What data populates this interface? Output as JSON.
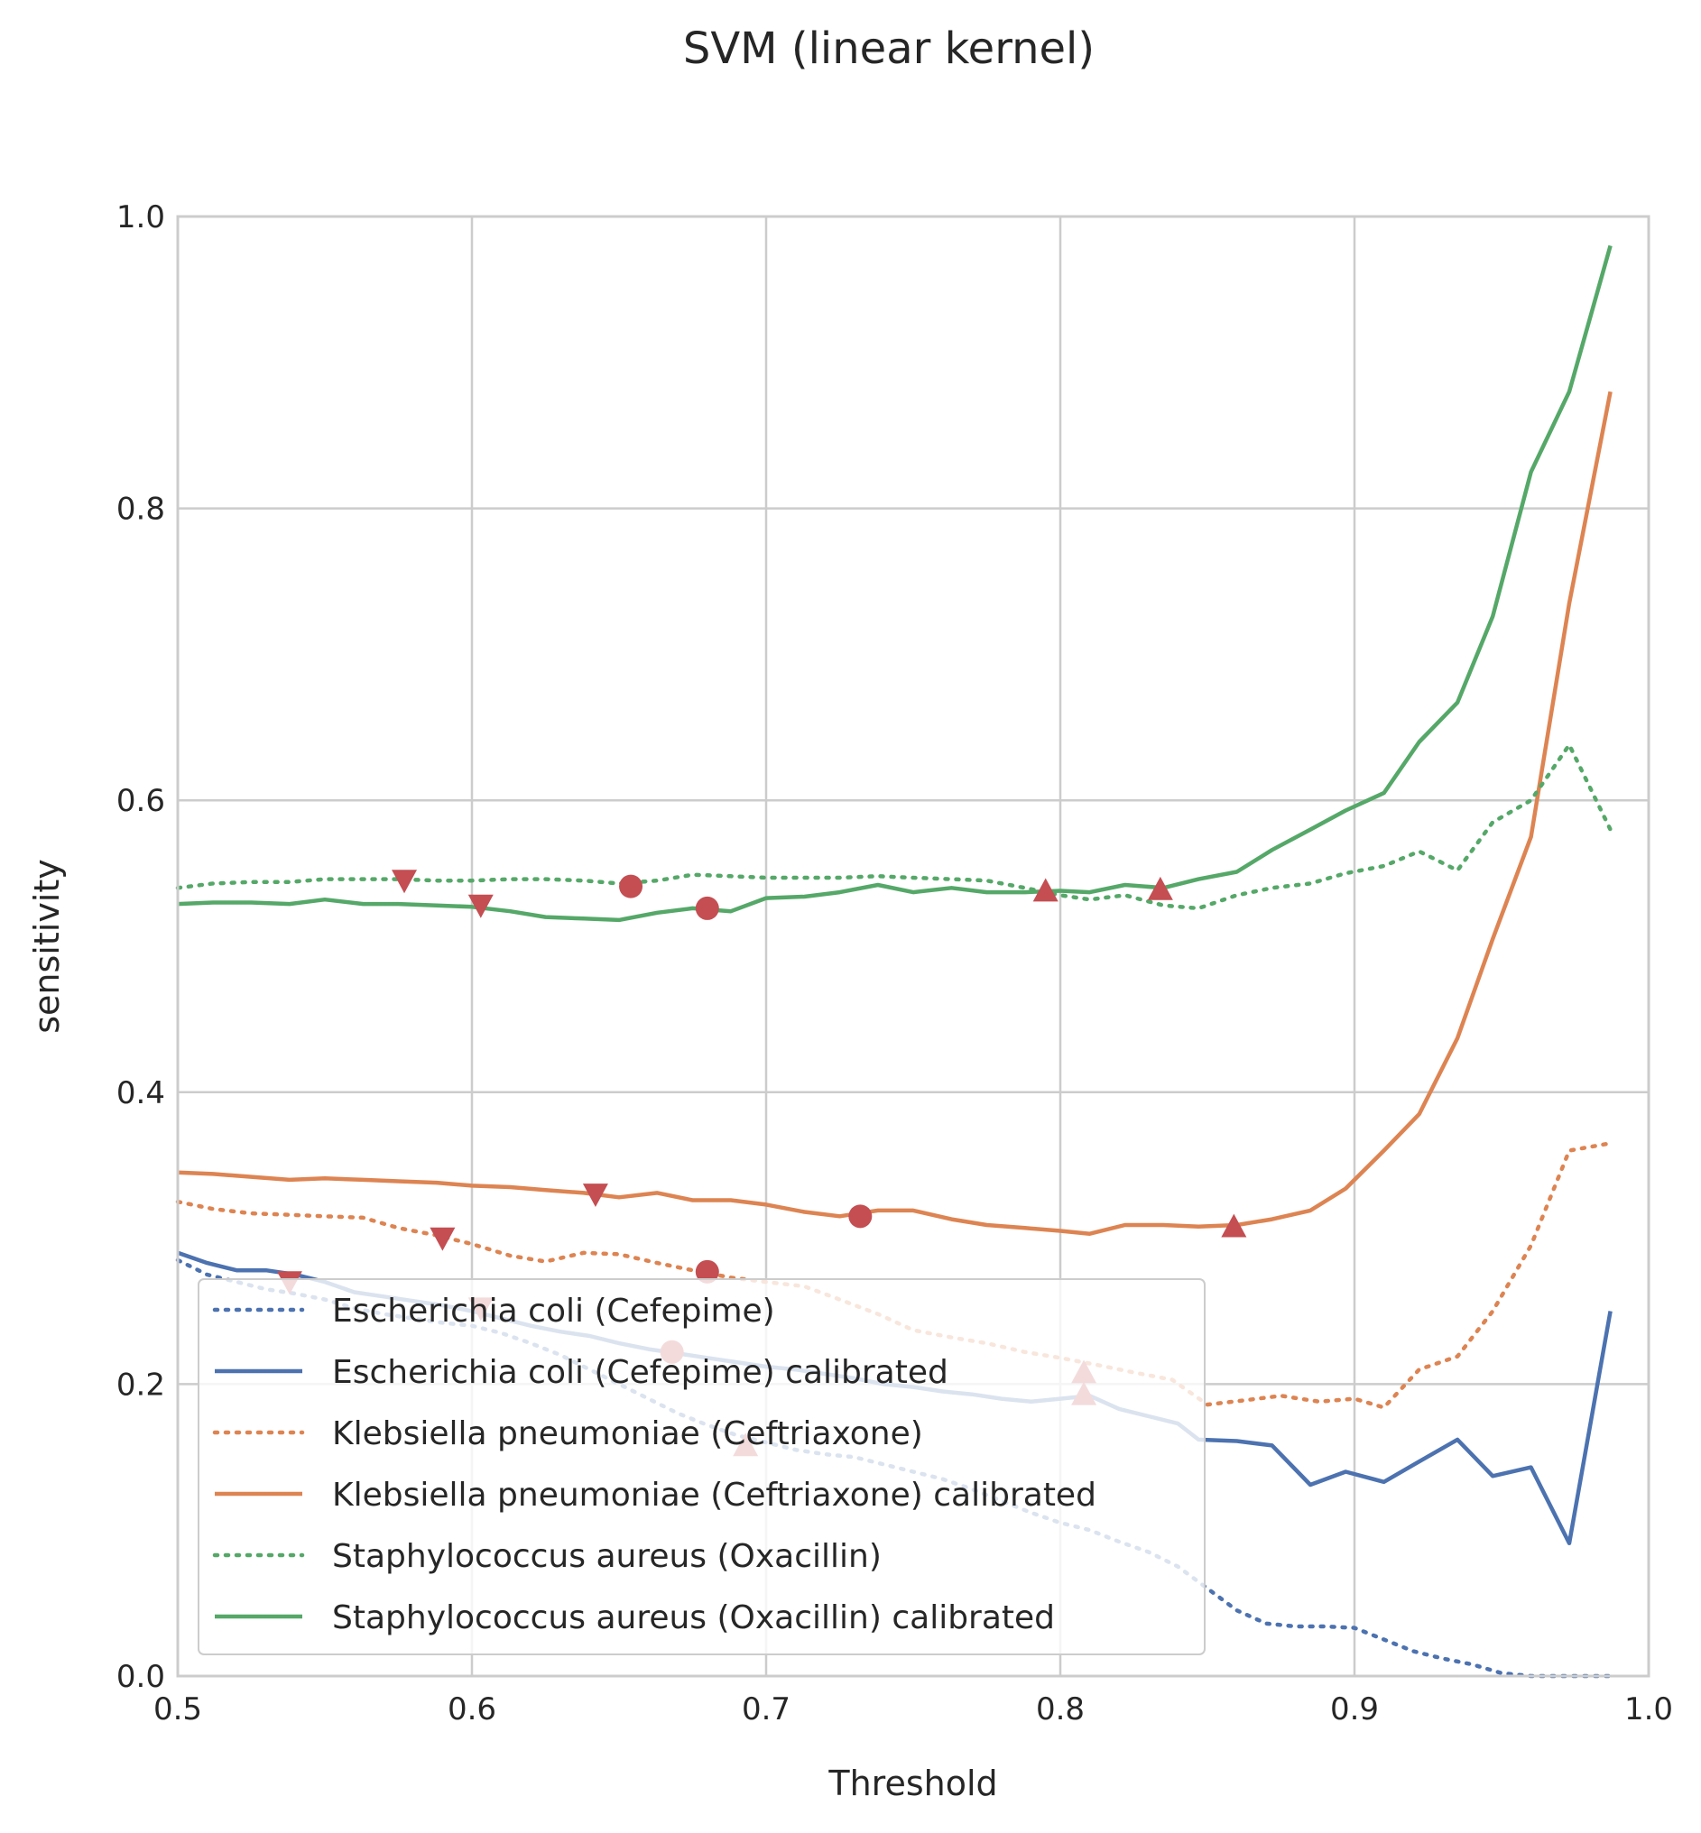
{
  "chart_data": {
    "type": "line",
    "title": "SVM (linear kernel)",
    "xlabel": "Threshold",
    "ylabel": "sensitivity",
    "xlim": [
      0.5,
      1.0
    ],
    "ylim": [
      0.0,
      1.0
    ],
    "xticks": [
      "0.5",
      "0.6",
      "0.7",
      "0.8",
      "0.9",
      "1.0"
    ],
    "yticks": [
      "0.0",
      "0.2",
      "0.4",
      "0.6",
      "0.8",
      "1.0"
    ],
    "grid": true,
    "legend_position": "lower-left",
    "series": [
      {
        "name": "Escherichia coli (Cefepime)",
        "color": "#4c72b0",
        "style": "dotted",
        "x": [
          0.5,
          0.51,
          0.52,
          0.53,
          0.54,
          0.55,
          0.56,
          0.57,
          0.58,
          0.59,
          0.6,
          0.61,
          0.62,
          0.63,
          0.64,
          0.65,
          0.66,
          0.67,
          0.68,
          0.69,
          0.7,
          0.71,
          0.72,
          0.73,
          0.74,
          0.75,
          0.76,
          0.77,
          0.78,
          0.79,
          0.8,
          0.81,
          0.82,
          0.83,
          0.84,
          0.85,
          0.86,
          0.87,
          0.88,
          0.89,
          0.9,
          0.91,
          0.92,
          0.93,
          0.94,
          0.95,
          0.96,
          0.97,
          0.98,
          0.988
        ],
        "y": [
          0.285,
          0.275,
          0.27,
          0.265,
          0.262,
          0.258,
          0.252,
          0.248,
          0.245,
          0.242,
          0.24,
          0.235,
          0.228,
          0.22,
          0.21,
          0.2,
          0.19,
          0.18,
          0.172,
          0.165,
          0.16,
          0.155,
          0.152,
          0.15,
          0.145,
          0.14,
          0.135,
          0.128,
          0.12,
          0.112,
          0.105,
          0.1,
          0.092,
          0.085,
          0.075,
          0.06,
          0.045,
          0.036,
          0.034,
          0.034,
          0.033,
          0.025,
          0.017,
          0.012,
          0.008,
          0.002,
          0.0,
          0.0,
          0.0,
          0.0
        ]
      },
      {
        "name": "Escherichia coli (Cefepime) calibrated",
        "color": "#4c72b0",
        "style": "solid",
        "x": [
          0.5,
          0.51,
          0.52,
          0.53,
          0.54,
          0.55,
          0.56,
          0.57,
          0.58,
          0.59,
          0.6,
          0.61,
          0.62,
          0.63,
          0.64,
          0.65,
          0.66,
          0.67,
          0.68,
          0.69,
          0.7,
          0.71,
          0.72,
          0.73,
          0.74,
          0.75,
          0.76,
          0.77,
          0.78,
          0.79,
          0.8,
          0.81,
          0.82,
          0.83,
          0.84,
          0.847,
          0.86,
          0.872,
          0.885,
          0.897,
          0.91,
          0.922,
          0.935,
          0.947,
          0.96,
          0.973,
          0.987
        ],
        "y": [
          0.29,
          0.283,
          0.278,
          0.278,
          0.275,
          0.27,
          0.263,
          0.26,
          0.257,
          0.254,
          0.25,
          0.245,
          0.24,
          0.236,
          0.233,
          0.228,
          0.224,
          0.221,
          0.218,
          0.215,
          0.212,
          0.21,
          0.207,
          0.204,
          0.2,
          0.198,
          0.195,
          0.193,
          0.19,
          0.188,
          0.19,
          0.192,
          0.183,
          0.178,
          0.173,
          0.162,
          0.161,
          0.158,
          0.131,
          0.14,
          0.133,
          0.147,
          0.162,
          0.137,
          0.143,
          0.091,
          0.25
        ]
      },
      {
        "name": "Klebsiella pneumoniae (Ceftriaxone)",
        "color": "#dd8452",
        "style": "dotted",
        "x": [
          0.5,
          0.512,
          0.525,
          0.538,
          0.55,
          0.563,
          0.575,
          0.588,
          0.6,
          0.613,
          0.625,
          0.638,
          0.65,
          0.663,
          0.675,
          0.688,
          0.7,
          0.713,
          0.725,
          0.738,
          0.75,
          0.763,
          0.775,
          0.788,
          0.8,
          0.813,
          0.825,
          0.838,
          0.85,
          0.863,
          0.875,
          0.888,
          0.9,
          0.91,
          0.922,
          0.935,
          0.947,
          0.96,
          0.973,
          0.987
        ],
        "y": [
          0.325,
          0.32,
          0.317,
          0.316,
          0.315,
          0.314,
          0.307,
          0.302,
          0.296,
          0.288,
          0.284,
          0.29,
          0.289,
          0.283,
          0.278,
          0.273,
          0.27,
          0.267,
          0.258,
          0.248,
          0.237,
          0.232,
          0.228,
          0.222,
          0.218,
          0.213,
          0.208,
          0.203,
          0.186,
          0.189,
          0.192,
          0.188,
          0.19,
          0.184,
          0.21,
          0.219,
          0.25,
          0.295,
          0.36,
          0.365
        ]
      },
      {
        "name": "Klebsiella pneumoniae (Ceftriaxone) calibrated",
        "color": "#dd8452",
        "style": "solid",
        "x": [
          0.5,
          0.512,
          0.525,
          0.538,
          0.55,
          0.563,
          0.575,
          0.588,
          0.6,
          0.613,
          0.625,
          0.638,
          0.65,
          0.663,
          0.675,
          0.688,
          0.7,
          0.713,
          0.725,
          0.738,
          0.75,
          0.763,
          0.775,
          0.788,
          0.8,
          0.81,
          0.822,
          0.835,
          0.847,
          0.86,
          0.872,
          0.885,
          0.897,
          0.91,
          0.922,
          0.935,
          0.947,
          0.96,
          0.973,
          0.987
        ],
        "y": [
          0.345,
          0.344,
          0.342,
          0.34,
          0.341,
          0.34,
          0.339,
          0.338,
          0.336,
          0.335,
          0.333,
          0.331,
          0.328,
          0.331,
          0.326,
          0.326,
          0.323,
          0.318,
          0.315,
          0.319,
          0.319,
          0.313,
          0.309,
          0.307,
          0.305,
          0.303,
          0.309,
          0.309,
          0.308,
          0.309,
          0.313,
          0.319,
          0.334,
          0.36,
          0.385,
          0.437,
          0.505,
          0.575,
          0.735,
          0.88
        ]
      },
      {
        "name": "Staphylococcus aureus (Oxacillin)",
        "color": "#55a868",
        "style": "dotted",
        "x": [
          0.5,
          0.512,
          0.525,
          0.538,
          0.55,
          0.563,
          0.575,
          0.588,
          0.6,
          0.613,
          0.625,
          0.638,
          0.65,
          0.663,
          0.675,
          0.688,
          0.7,
          0.713,
          0.725,
          0.738,
          0.75,
          0.763,
          0.775,
          0.788,
          0.8,
          0.81,
          0.822,
          0.835,
          0.847,
          0.86,
          0.872,
          0.885,
          0.897,
          0.91,
          0.922,
          0.935,
          0.947,
          0.96,
          0.973,
          0.987
        ],
        "y": [
          0.54,
          0.543,
          0.544,
          0.544,
          0.546,
          0.546,
          0.546,
          0.545,
          0.545,
          0.546,
          0.546,
          0.545,
          0.543,
          0.545,
          0.549,
          0.548,
          0.547,
          0.547,
          0.547,
          0.548,
          0.547,
          0.546,
          0.545,
          0.54,
          0.535,
          0.532,
          0.535,
          0.528,
          0.526,
          0.535,
          0.54,
          0.543,
          0.55,
          0.555,
          0.565,
          0.552,
          0.585,
          0.6,
          0.638,
          0.58
        ]
      },
      {
        "name": "Staphylococcus aureus (Oxacillin) calibrated",
        "color": "#55a868",
        "style": "solid",
        "x": [
          0.5,
          0.512,
          0.525,
          0.538,
          0.55,
          0.563,
          0.575,
          0.588,
          0.6,
          0.613,
          0.625,
          0.638,
          0.65,
          0.663,
          0.675,
          0.688,
          0.7,
          0.713,
          0.725,
          0.738,
          0.75,
          0.763,
          0.775,
          0.788,
          0.8,
          0.81,
          0.822,
          0.835,
          0.847,
          0.86,
          0.872,
          0.885,
          0.897,
          0.91,
          0.922,
          0.935,
          0.947,
          0.96,
          0.973,
          0.987
        ],
        "y": [
          0.529,
          0.53,
          0.53,
          0.529,
          0.532,
          0.529,
          0.529,
          0.528,
          0.527,
          0.524,
          0.52,
          0.519,
          0.518,
          0.523,
          0.526,
          0.524,
          0.533,
          0.534,
          0.537,
          0.542,
          0.537,
          0.54,
          0.537,
          0.537,
          0.538,
          0.537,
          0.542,
          0.54,
          0.546,
          0.551,
          0.566,
          0.58,
          0.593,
          0.605,
          0.64,
          0.667,
          0.726,
          0.825,
          0.88,
          0.98
        ]
      }
    ],
    "markers": [
      {
        "shape": "triangle-down",
        "color": "#c44e52",
        "points": [
          [
            0.577,
            0.545
          ],
          [
            0.603,
            0.528
          ],
          [
            0.538,
            0.27
          ],
          [
            0.59,
            0.3
          ],
          [
            0.642,
            0.33
          ],
          [
            0.603,
            0.252
          ]
        ]
      },
      {
        "shape": "circle",
        "color": "#c44e52",
        "points": [
          [
            0.654,
            0.541
          ],
          [
            0.68,
            0.526
          ],
          [
            0.68,
            0.277
          ],
          [
            0.732,
            0.315
          ],
          [
            0.668,
            0.222
          ]
        ]
      },
      {
        "shape": "triangle-up",
        "color": "#c44e52",
        "points": [
          [
            0.795,
            0.538
          ],
          [
            0.834,
            0.539
          ],
          [
            0.859,
            0.308
          ],
          [
            0.808,
            0.208
          ],
          [
            0.808,
            0.193
          ],
          [
            0.693,
            0.158
          ]
        ]
      }
    ]
  }
}
